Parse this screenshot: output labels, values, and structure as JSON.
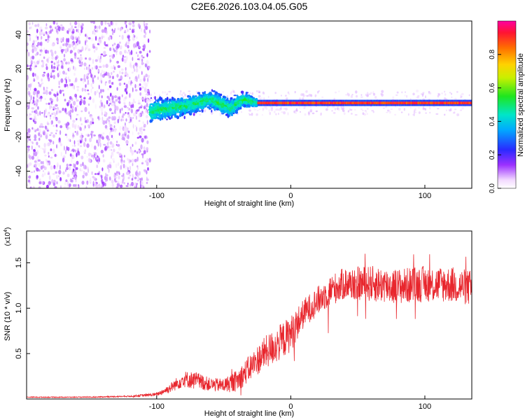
{
  "figure": {
    "title": "C2E6.2026.103.04.05.G05"
  },
  "chart_data": [
    {
      "type": "heatmap",
      "xlabel": "Height of straight line (km)",
      "ylabel": "Frequency (Hz)",
      "xlim": [
        -197,
        135
      ],
      "ylim": [
        -50,
        48
      ],
      "xticks": [
        -100,
        0,
        100
      ],
      "yticks": [
        -40,
        -20,
        0,
        20,
        40
      ],
      "colorbar": {
        "label": "Normalized spectral amplitude",
        "range": [
          0,
          1
        ],
        "ticks": [
          0.0,
          0.2,
          0.4,
          0.6,
          0.8
        ]
      },
      "description_series": [
        {
          "name": "noise-scatter",
          "x_range": [
            -197,
            -105
          ],
          "freq_range": [
            -50,
            48
          ],
          "amplitude": 0.05
        },
        {
          "name": "broad-band",
          "x": [
            -105,
            -80,
            -60,
            -45,
            -35,
            -25
          ],
          "center_freq": [
            -5,
            -2,
            2,
            -3,
            2,
            0
          ],
          "half_width": [
            9,
            7,
            7,
            7,
            6,
            3
          ],
          "amplitude": 0.3
        },
        {
          "name": "narrow-line",
          "x_range": [
            -25,
            135
          ],
          "freq": 0,
          "half_width": 1,
          "amplitude": 0.95
        }
      ]
    },
    {
      "type": "line",
      "xlabel": "Height of straight line (km)",
      "ylabel": "SNR (10 * v/v)",
      "y_scale_label_base": "(x10",
      "y_scale_label_exp": "4",
      "y_scale_label_end": ")",
      "xlim": [
        -197,
        135
      ],
      "ylim": [
        0,
        1.85
      ],
      "xticks": [
        -100,
        0,
        100
      ],
      "yticks": [
        0.5,
        1.0,
        1.5
      ],
      "ytick_labels": [
        "0.5",
        "1.0",
        "1.5"
      ],
      "series": [
        {
          "name": "SNR",
          "color": "#e8262d",
          "x": [
            -197,
            -150,
            -120,
            -100,
            -90,
            -80,
            -70,
            -60,
            -50,
            -40,
            -30,
            -20,
            -10,
            0,
            10,
            20,
            30,
            40,
            60,
            80,
            100,
            120,
            135
          ],
          "y": [
            0.02,
            0.02,
            0.03,
            0.05,
            0.12,
            0.22,
            0.2,
            0.16,
            0.15,
            0.2,
            0.35,
            0.5,
            0.6,
            0.72,
            0.95,
            1.08,
            1.2,
            1.27,
            1.27,
            1.24,
            1.27,
            1.26,
            1.22
          ],
          "noise": [
            0.005,
            0.005,
            0.008,
            0.02,
            0.05,
            0.09,
            0.1,
            0.07,
            0.08,
            0.12,
            0.15,
            0.18,
            0.2,
            0.2,
            0.16,
            0.16,
            0.17,
            0.18,
            0.2,
            0.2,
            0.2,
            0.2,
            0.2
          ]
        }
      ]
    }
  ]
}
